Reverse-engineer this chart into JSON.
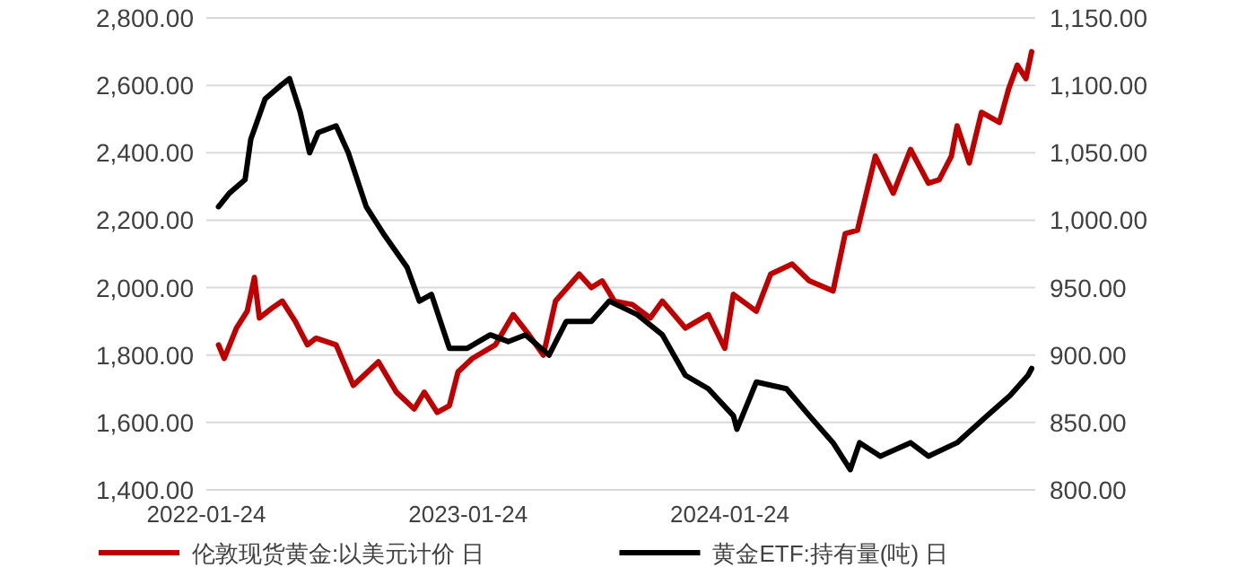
{
  "chart_data": {
    "type": "line",
    "legend": "bottom",
    "grid": "y",
    "line_style": "solid",
    "marker": "none",
    "xlim": [
      "2022-01-24",
      "2025-03-25"
    ],
    "xticks": [
      "2022-01-24",
      "2023-01-24",
      "2024-01-24"
    ],
    "ylim": [
      1400,
      2800
    ],
    "yticks": [
      {
        "value": 1400,
        "label": "1,400.00"
      },
      {
        "value": 1600,
        "label": "1,600.00"
      },
      {
        "value": 1800,
        "label": "1,800.00"
      },
      {
        "value": 2000,
        "label": "2,000.00"
      },
      {
        "value": 2200,
        "label": "2,200.00"
      },
      {
        "value": 2400,
        "label": "2,400.00"
      },
      {
        "value": 2600,
        "label": "2,600.00"
      },
      {
        "value": 2800,
        "label": "2,800.00"
      }
    ],
    "y2lim": [
      800,
      1150
    ],
    "y2ticks": [
      {
        "value": 800,
        "label": "800.00"
      },
      {
        "value": 850,
        "label": "850.00"
      },
      {
        "value": 900,
        "label": "900.00"
      },
      {
        "value": 950,
        "label": "950.00"
      },
      {
        "value": 1000,
        "label": "1,000.00"
      },
      {
        "value": 1050,
        "label": "1,050.00"
      },
      {
        "value": 1100,
        "label": "1,100.00"
      },
      {
        "value": 1150,
        "label": "1,150.00"
      }
    ],
    "series": [
      {
        "name": "伦敦现货黄金:以美元计价 日",
        "color": "#c00000",
        "x": [
          "2022-02-10",
          "2022-02-18",
          "2022-03-07",
          "2022-03-22",
          "2022-04-01",
          "2022-04-08",
          "2022-04-26",
          "2022-05-10",
          "2022-05-28",
          "2022-06-14",
          "2022-06-26",
          "2022-07-24",
          "2022-08-17",
          "2022-09-21",
          "2022-10-16",
          "2022-11-10",
          "2022-11-24",
          "2022-12-12",
          "2022-12-29",
          "2023-01-10",
          "2023-01-30",
          "2023-03-03",
          "2023-03-28",
          "2023-04-19",
          "2023-05-09",
          "2023-05-26",
          "2023-06-28",
          "2023-07-15",
          "2023-07-30",
          "2023-08-16",
          "2023-09-10",
          "2023-10-05",
          "2023-10-22",
          "2023-11-23",
          "2023-12-25",
          "2024-01-17",
          "2024-01-29",
          "2024-03-01",
          "2024-03-21",
          "2024-04-20",
          "2024-05-14",
          "2024-06-16",
          "2024-07-03",
          "2024-07-20",
          "2024-08-14",
          "2024-09-08",
          "2024-10-02",
          "2024-10-27",
          "2024-11-11",
          "2024-11-28",
          "2024-12-06",
          "2024-12-23",
          "2025-01-09",
          "2025-02-03",
          "2025-02-16",
          "2025-02-28",
          "2025-03-12",
          "2025-03-20"
        ],
        "values": [
          1830,
          1790,
          1880,
          1930,
          2030,
          1910,
          1940,
          1960,
          1900,
          1830,
          1850,
          1830,
          1710,
          1780,
          1690,
          1640,
          1690,
          1630,
          1650,
          1750,
          1790,
          1830,
          1920,
          1860,
          1800,
          1960,
          2040,
          2000,
          2020,
          1960,
          1950,
          1910,
          1960,
          1880,
          1920,
          1820,
          1980,
          1930,
          2040,
          2070,
          2020,
          1990,
          2160,
          2170,
          2390,
          2280,
          2410,
          2310,
          2320,
          2390,
          2480,
          2370,
          2520,
          2490,
          2590,
          2660,
          2620,
          2700
        ]
      },
      {
        "name": "黄金ETF:持有量(吨) 日",
        "color": "#000000",
        "axis": "y2",
        "x": [
          "2022-02-10",
          "2022-02-25",
          "2022-03-19",
          "2022-03-27",
          "2022-04-16",
          "2022-05-08",
          "2022-05-20",
          "2022-06-04",
          "2022-06-17",
          "2022-06-29",
          "2022-07-24",
          "2022-08-10",
          "2022-09-04",
          "2022-09-28",
          "2022-10-31",
          "2022-11-17",
          "2022-12-04",
          "2022-12-29",
          "2023-01-23",
          "2023-02-24",
          "2023-03-21",
          "2023-04-14",
          "2023-05-17",
          "2023-06-10",
          "2023-07-15",
          "2023-08-09",
          "2023-09-17",
          "2023-10-22",
          "2023-11-23",
          "2023-12-25",
          "2024-01-29",
          "2024-02-03",
          "2024-03-01",
          "2024-04-12",
          "2024-05-14",
          "2024-06-16",
          "2024-07-10",
          "2024-07-23",
          "2024-08-21",
          "2024-10-02",
          "2024-10-27",
          "2024-12-06",
          "2025-01-17",
          "2025-02-18",
          "2025-03-15",
          "2025-03-20"
        ],
        "values": [
          1010,
          1020,
          1030,
          1060,
          1090,
          1100,
          1105,
          1080,
          1050,
          1065,
          1070,
          1050,
          1010,
          990,
          965,
          940,
          945,
          905,
          905,
          915,
          910,
          915,
          900,
          925,
          925,
          940,
          930,
          915,
          885,
          875,
          855,
          845,
          880,
          875,
          855,
          835,
          815,
          835,
          825,
          835,
          825,
          835,
          855,
          870,
          885,
          890
        ]
      }
    ]
  }
}
